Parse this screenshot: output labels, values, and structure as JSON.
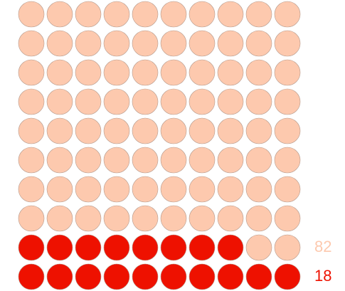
{
  "chart_data": {
    "type": "waffle",
    "rows": 10,
    "columns": 10,
    "series": [
      {
        "color": "#fdc9ae",
        "values": [
          82
        ]
      },
      {
        "color": "#ee1100",
        "values": [
          18
        ]
      }
    ]
  }
}
